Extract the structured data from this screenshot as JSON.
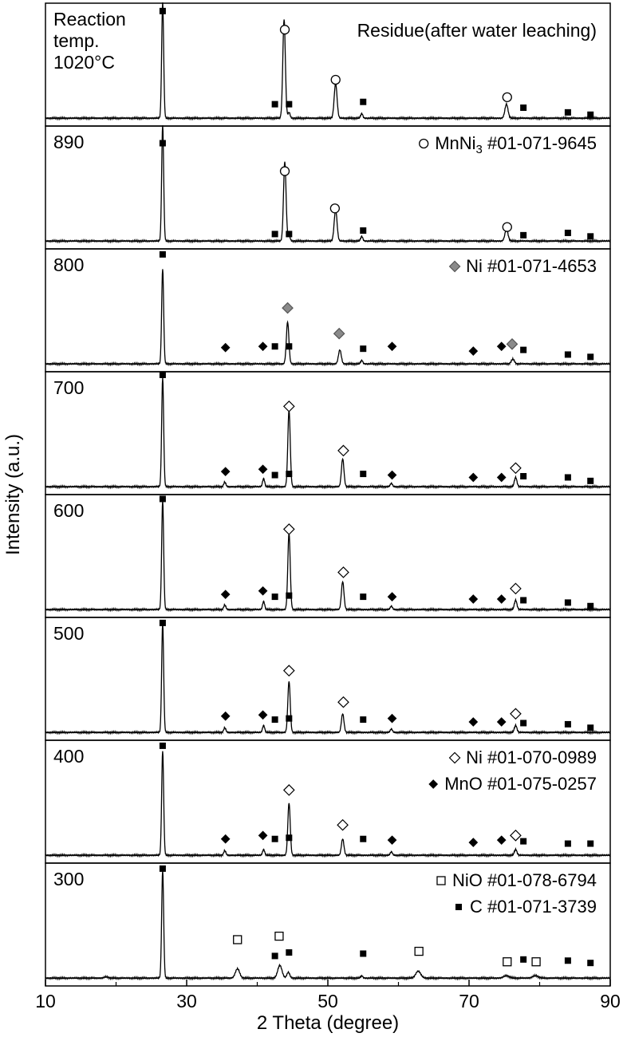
{
  "chart_data": {
    "type": "line",
    "xlabel": "2 Theta (degree)",
    "ylabel": "Intensity (a.u.)",
    "xlim": [
      10,
      90
    ],
    "x_ticks": [
      10,
      30,
      50,
      70,
      90
    ],
    "x_tick_labels": [
      "10",
      "30",
      "50",
      "70",
      "90"
    ],
    "panels": [
      {
        "label_lines": [
          "Reaction",
          "temp.",
          "1020°C"
        ],
        "annotation": "Residue(after water leaching)",
        "baseline": 0.08,
        "peaks": [
          {
            "x": 26.6,
            "h": 1.0,
            "w": 0.14
          },
          {
            "x": 43.8,
            "h": 0.85,
            "w": 0.18
          },
          {
            "x": 44.5,
            "h": 0.05,
            "w": 0.15
          },
          {
            "x": 51.1,
            "h": 0.3,
            "w": 0.2
          },
          {
            "x": 54.8,
            "h": 0.04,
            "w": 0.15
          },
          {
            "x": 75.3,
            "h": 0.12,
            "w": 0.22
          }
        ],
        "markers": [
          {
            "x": 26.6,
            "y": 0.96,
            "sym": "square"
          },
          {
            "x": 43.9,
            "y": 0.8,
            "sym": "circle"
          },
          {
            "x": 42.5,
            "y": 0.16,
            "sym": "square"
          },
          {
            "x": 44.5,
            "y": 0.16,
            "sym": "square"
          },
          {
            "x": 51.1,
            "y": 0.37,
            "sym": "circle"
          },
          {
            "x": 55.0,
            "y": 0.18,
            "sym": "square"
          },
          {
            "x": 75.4,
            "y": 0.22,
            "sym": "circle"
          },
          {
            "x": 77.7,
            "y": 0.13,
            "sym": "square"
          },
          {
            "x": 84.0,
            "y": 0.09,
            "sym": "square"
          },
          {
            "x": 87.2,
            "y": 0.07,
            "sym": "square"
          }
        ],
        "legend": []
      },
      {
        "label_lines": [
          "890"
        ],
        "annotation": "",
        "baseline": 0.08,
        "peaks": [
          {
            "x": 26.6,
            "h": 1.0,
            "w": 0.14
          },
          {
            "x": 43.9,
            "h": 0.68,
            "w": 0.18
          },
          {
            "x": 44.5,
            "h": 0.05,
            "w": 0.15
          },
          {
            "x": 51.1,
            "h": 0.27,
            "w": 0.2
          },
          {
            "x": 54.8,
            "h": 0.04,
            "w": 0.15
          },
          {
            "x": 75.3,
            "h": 0.1,
            "w": 0.22
          }
        ],
        "markers": [
          {
            "x": 26.6,
            "y": 0.88,
            "sym": "square"
          },
          {
            "x": 43.9,
            "y": 0.64,
            "sym": "circle"
          },
          {
            "x": 42.5,
            "y": 0.1,
            "sym": "square"
          },
          {
            "x": 44.5,
            "y": 0.1,
            "sym": "square"
          },
          {
            "x": 51.0,
            "y": 0.32,
            "sym": "circle"
          },
          {
            "x": 55.0,
            "y": 0.13,
            "sym": "square"
          },
          {
            "x": 75.4,
            "y": 0.16,
            "sym": "circle"
          },
          {
            "x": 77.7,
            "y": 0.09,
            "sym": "square"
          },
          {
            "x": 84.0,
            "y": 0.11,
            "sym": "square"
          },
          {
            "x": 87.2,
            "y": 0.08,
            "sym": "square"
          }
        ],
        "legend": [
          {
            "sym": "circle",
            "text": "MnNi",
            "sub": "3",
            "rest": " #01-071-9645"
          }
        ]
      },
      {
        "label_lines": [
          "800"
        ],
        "annotation": "",
        "baseline": 0.08,
        "peaks": [
          {
            "x": 26.6,
            "h": 0.82,
            "w": 0.14
          },
          {
            "x": 44.3,
            "h": 0.36,
            "w": 0.18
          },
          {
            "x": 51.7,
            "h": 0.12,
            "w": 0.2
          },
          {
            "x": 54.8,
            "h": 0.03,
            "w": 0.15
          },
          {
            "x": 76.2,
            "h": 0.04,
            "w": 0.22
          }
        ],
        "markers": [
          {
            "x": 26.6,
            "y": 0.98,
            "sym": "square"
          },
          {
            "x": 44.3,
            "y": 0.52,
            "sym": "diamond-gray"
          },
          {
            "x": 35.5,
            "y": 0.18,
            "sym": "diamond-black"
          },
          {
            "x": 40.8,
            "y": 0.19,
            "sym": "diamond-black"
          },
          {
            "x": 42.5,
            "y": 0.19,
            "sym": "square"
          },
          {
            "x": 44.5,
            "y": 0.19,
            "sym": "square"
          },
          {
            "x": 51.6,
            "y": 0.3,
            "sym": "diamond-gray"
          },
          {
            "x": 55.0,
            "y": 0.17,
            "sym": "square"
          },
          {
            "x": 59.1,
            "y": 0.19,
            "sym": "diamond-black"
          },
          {
            "x": 70.6,
            "y": 0.15,
            "sym": "diamond-black"
          },
          {
            "x": 74.6,
            "y": 0.19,
            "sym": "diamond-black"
          },
          {
            "x": 76.1,
            "y": 0.21,
            "sym": "diamond-gray"
          },
          {
            "x": 77.7,
            "y": 0.16,
            "sym": "square"
          },
          {
            "x": 84.0,
            "y": 0.12,
            "sym": "square"
          },
          {
            "x": 87.2,
            "y": 0.1,
            "sym": "square"
          }
        ],
        "legend": [
          {
            "sym": "diamond-gray",
            "text": "Ni #01-071-4653",
            "sub": "",
            "rest": ""
          }
        ]
      },
      {
        "label_lines": [
          "700"
        ],
        "annotation": "",
        "baseline": 0.08,
        "peaks": [
          {
            "x": 26.6,
            "h": 0.94,
            "w": 0.14
          },
          {
            "x": 35.4,
            "h": 0.04,
            "w": 0.15
          },
          {
            "x": 40.9,
            "h": 0.07,
            "w": 0.15
          },
          {
            "x": 44.5,
            "h": 0.66,
            "w": 0.17
          },
          {
            "x": 52.1,
            "h": 0.24,
            "w": 0.18
          },
          {
            "x": 59.0,
            "h": 0.03,
            "w": 0.15
          },
          {
            "x": 76.6,
            "h": 0.08,
            "w": 0.18
          }
        ],
        "markers": [
          {
            "x": 26.6,
            "y": 1.0,
            "sym": "square"
          },
          {
            "x": 44.5,
            "y": 0.73,
            "sym": "diamond-white"
          },
          {
            "x": 35.5,
            "y": 0.17,
            "sym": "diamond-black"
          },
          {
            "x": 40.8,
            "y": 0.19,
            "sym": "diamond-black"
          },
          {
            "x": 42.5,
            "y": 0.14,
            "sym": "square"
          },
          {
            "x": 44.5,
            "y": 0.15,
            "sym": "square"
          },
          {
            "x": 52.2,
            "y": 0.35,
            "sym": "diamond-white"
          },
          {
            "x": 55.0,
            "y": 0.15,
            "sym": "square"
          },
          {
            "x": 59.1,
            "y": 0.14,
            "sym": "diamond-black"
          },
          {
            "x": 70.6,
            "y": 0.12,
            "sym": "diamond-black"
          },
          {
            "x": 74.6,
            "y": 0.12,
            "sym": "diamond-black"
          },
          {
            "x": 76.6,
            "y": 0.2,
            "sym": "diamond-white"
          },
          {
            "x": 77.7,
            "y": 0.13,
            "sym": "square"
          },
          {
            "x": 84.0,
            "y": 0.12,
            "sym": "square"
          },
          {
            "x": 87.2,
            "y": 0.09,
            "sym": "square"
          }
        ],
        "legend": []
      },
      {
        "label_lines": [
          "600"
        ],
        "annotation": "",
        "baseline": 0.08,
        "peaks": [
          {
            "x": 26.6,
            "h": 0.94,
            "w": 0.14
          },
          {
            "x": 35.4,
            "h": 0.04,
            "w": 0.15
          },
          {
            "x": 40.9,
            "h": 0.07,
            "w": 0.15
          },
          {
            "x": 44.5,
            "h": 0.66,
            "w": 0.17
          },
          {
            "x": 52.1,
            "h": 0.24,
            "w": 0.18
          },
          {
            "x": 59.0,
            "h": 0.03,
            "w": 0.15
          },
          {
            "x": 76.6,
            "h": 0.08,
            "w": 0.18
          }
        ],
        "markers": [
          {
            "x": 26.6,
            "y": 0.99,
            "sym": "square"
          },
          {
            "x": 44.5,
            "y": 0.73,
            "sym": "diamond-white"
          },
          {
            "x": 35.5,
            "y": 0.17,
            "sym": "diamond-black"
          },
          {
            "x": 40.8,
            "y": 0.2,
            "sym": "diamond-black"
          },
          {
            "x": 42.5,
            "y": 0.15,
            "sym": "square"
          },
          {
            "x": 44.5,
            "y": 0.16,
            "sym": "square"
          },
          {
            "x": 52.2,
            "y": 0.36,
            "sym": "diamond-white"
          },
          {
            "x": 55.0,
            "y": 0.15,
            "sym": "square"
          },
          {
            "x": 59.1,
            "y": 0.15,
            "sym": "diamond-black"
          },
          {
            "x": 70.6,
            "y": 0.13,
            "sym": "diamond-black"
          },
          {
            "x": 74.6,
            "y": 0.13,
            "sym": "diamond-black"
          },
          {
            "x": 76.6,
            "y": 0.22,
            "sym": "diamond-white"
          },
          {
            "x": 77.7,
            "y": 0.12,
            "sym": "square"
          },
          {
            "x": 84.0,
            "y": 0.1,
            "sym": "square"
          },
          {
            "x": 87.2,
            "y": 0.07,
            "sym": "square"
          }
        ],
        "legend": []
      },
      {
        "label_lines": [
          "500"
        ],
        "annotation": "",
        "baseline": 0.08,
        "peaks": [
          {
            "x": 26.6,
            "h": 0.94,
            "w": 0.14
          },
          {
            "x": 35.4,
            "h": 0.04,
            "w": 0.15
          },
          {
            "x": 40.9,
            "h": 0.06,
            "w": 0.15
          },
          {
            "x": 44.5,
            "h": 0.44,
            "w": 0.17
          },
          {
            "x": 52.1,
            "h": 0.16,
            "w": 0.18
          },
          {
            "x": 59.0,
            "h": 0.03,
            "w": 0.15
          },
          {
            "x": 76.6,
            "h": 0.06,
            "w": 0.18
          }
        ],
        "markers": [
          {
            "x": 26.6,
            "y": 0.98,
            "sym": "square"
          },
          {
            "x": 44.5,
            "y": 0.57,
            "sym": "diamond-white"
          },
          {
            "x": 35.5,
            "y": 0.18,
            "sym": "diamond-black"
          },
          {
            "x": 40.8,
            "y": 0.19,
            "sym": "diamond-black"
          },
          {
            "x": 42.5,
            "y": 0.15,
            "sym": "square"
          },
          {
            "x": 44.5,
            "y": 0.16,
            "sym": "square"
          },
          {
            "x": 52.2,
            "y": 0.3,
            "sym": "diamond-white"
          },
          {
            "x": 55.0,
            "y": 0.15,
            "sym": "square"
          },
          {
            "x": 59.1,
            "y": 0.16,
            "sym": "diamond-black"
          },
          {
            "x": 70.6,
            "y": 0.13,
            "sym": "diamond-black"
          },
          {
            "x": 74.6,
            "y": 0.13,
            "sym": "diamond-black"
          },
          {
            "x": 76.6,
            "y": 0.2,
            "sym": "diamond-white"
          },
          {
            "x": 77.7,
            "y": 0.12,
            "sym": "square"
          },
          {
            "x": 84.0,
            "y": 0.11,
            "sym": "square"
          },
          {
            "x": 87.2,
            "y": 0.08,
            "sym": "square"
          }
        ],
        "legend": []
      },
      {
        "label_lines": [
          "400"
        ],
        "annotation": "",
        "baseline": 0.08,
        "peaks": [
          {
            "x": 26.6,
            "h": 0.9,
            "w": 0.14
          },
          {
            "x": 35.4,
            "h": 0.04,
            "w": 0.15
          },
          {
            "x": 40.9,
            "h": 0.05,
            "w": 0.15
          },
          {
            "x": 44.5,
            "h": 0.45,
            "w": 0.17
          },
          {
            "x": 52.1,
            "h": 0.14,
            "w": 0.18
          },
          {
            "x": 59.0,
            "h": 0.03,
            "w": 0.15
          },
          {
            "x": 76.6,
            "h": 0.05,
            "w": 0.18
          }
        ],
        "markers": [
          {
            "x": 26.6,
            "y": 0.98,
            "sym": "square"
          },
          {
            "x": 44.5,
            "y": 0.6,
            "sym": "diamond-white"
          },
          {
            "x": 35.5,
            "y": 0.18,
            "sym": "diamond-black"
          },
          {
            "x": 40.8,
            "y": 0.21,
            "sym": "diamond-black"
          },
          {
            "x": 42.5,
            "y": 0.18,
            "sym": "square"
          },
          {
            "x": 44.5,
            "y": 0.19,
            "sym": "square"
          },
          {
            "x": 52.1,
            "y": 0.3,
            "sym": "diamond-white"
          },
          {
            "x": 55.0,
            "y": 0.18,
            "sym": "square"
          },
          {
            "x": 59.1,
            "y": 0.17,
            "sym": "diamond-black"
          },
          {
            "x": 70.6,
            "y": 0.15,
            "sym": "diamond-black"
          },
          {
            "x": 74.6,
            "y": 0.17,
            "sym": "diamond-black"
          },
          {
            "x": 76.6,
            "y": 0.21,
            "sym": "diamond-white"
          },
          {
            "x": 77.7,
            "y": 0.16,
            "sym": "square"
          },
          {
            "x": 84.0,
            "y": 0.14,
            "sym": "square"
          },
          {
            "x": 87.2,
            "y": 0.14,
            "sym": "square"
          }
        ],
        "legend": [
          {
            "sym": "diamond-white",
            "text": "Ni #01-070-0989",
            "sub": "",
            "rest": ""
          },
          {
            "sym": "diamond-black",
            "text": "MnO #01-075-0257",
            "sub": "",
            "rest": ""
          }
        ]
      },
      {
        "label_lines": [
          "300"
        ],
        "annotation": "",
        "baseline": 0.08,
        "peaks": [
          {
            "x": 18.6,
            "h": 0.01,
            "w": 0.3
          },
          {
            "x": 26.6,
            "h": 0.93,
            "w": 0.14
          },
          {
            "x": 37.2,
            "h": 0.08,
            "w": 0.3
          },
          {
            "x": 43.2,
            "h": 0.11,
            "w": 0.3
          },
          {
            "x": 44.4,
            "h": 0.05,
            "w": 0.2
          },
          {
            "x": 54.8,
            "h": 0.02,
            "w": 0.15
          },
          {
            "x": 62.8,
            "h": 0.06,
            "w": 0.35
          },
          {
            "x": 75.3,
            "h": 0.02,
            "w": 0.4
          },
          {
            "x": 79.4,
            "h": 0.02,
            "w": 0.4
          }
        ],
        "markers": [
          {
            "x": 26.6,
            "y": 0.98,
            "sym": "square"
          },
          {
            "x": 37.2,
            "y": 0.37,
            "sym": "square-open"
          },
          {
            "x": 43.1,
            "y": 0.4,
            "sym": "square-open"
          },
          {
            "x": 42.5,
            "y": 0.23,
            "sym": "square"
          },
          {
            "x": 44.5,
            "y": 0.26,
            "sym": "square"
          },
          {
            "x": 55.0,
            "y": 0.25,
            "sym": "square"
          },
          {
            "x": 62.9,
            "y": 0.27,
            "sym": "square-open"
          },
          {
            "x": 75.4,
            "y": 0.18,
            "sym": "square-open"
          },
          {
            "x": 77.7,
            "y": 0.2,
            "sym": "square"
          },
          {
            "x": 79.5,
            "y": 0.18,
            "sym": "square-open"
          },
          {
            "x": 84.0,
            "y": 0.19,
            "sym": "square"
          },
          {
            "x": 87.2,
            "y": 0.17,
            "sym": "square"
          }
        ],
        "legend": [
          {
            "sym": "square-open",
            "text": "NiO #01-078-6794",
            "sub": "",
            "rest": ""
          },
          {
            "sym": "square",
            "text": "C #01-071-3739",
            "sub": "",
            "rest": ""
          }
        ]
      }
    ]
  }
}
